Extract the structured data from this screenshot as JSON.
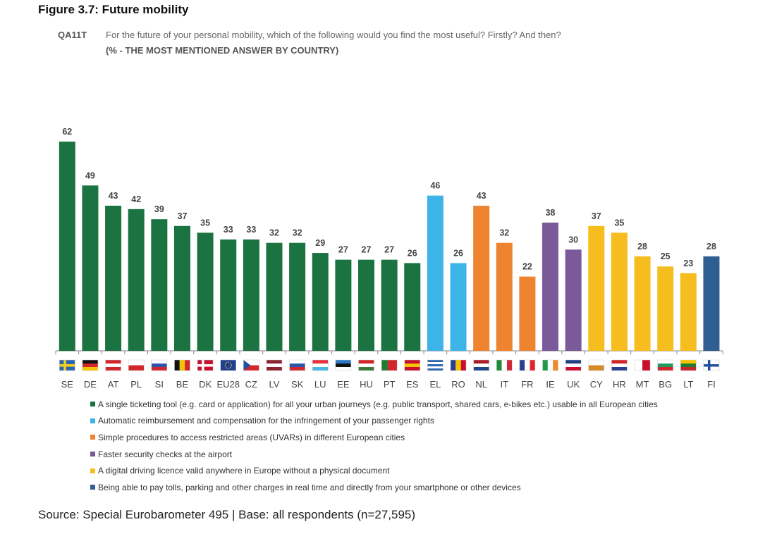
{
  "figure_title": "Figure 3.7: Future mobility",
  "question": {
    "code": "QA11T",
    "text": "For the future of your personal mobility, which of the following would you find the most useful? Firstly? And then?",
    "subtitle": "(% - THE MOST MENTIONED ANSWER BY COUNTRY)"
  },
  "source": "Source: Special Eurobarometer 495 | Base: all respondents (n=27,595)",
  "colors": {
    "green": "#1a7340",
    "blue": "#3db4e8",
    "orange": "#ee8430",
    "purple": "#7a5a99",
    "yellow": "#f6bd1e",
    "navy": "#2f5f90"
  },
  "chart_data": {
    "type": "bar",
    "title": "",
    "xlabel": "",
    "ylabel": "",
    "ylim": [
      0,
      62
    ],
    "categories": [
      "SE",
      "DE",
      "AT",
      "PL",
      "SI",
      "BE",
      "DK",
      "EU28",
      "CZ",
      "LV",
      "SK",
      "LU",
      "EE",
      "HU",
      "PT",
      "ES",
      "EL",
      "RO",
      "NL",
      "IT",
      "FR",
      "IE",
      "UK",
      "CY",
      "HR",
      "MT",
      "BG",
      "LT",
      "FI"
    ],
    "values": [
      62,
      49,
      43,
      42,
      39,
      37,
      35,
      33,
      33,
      32,
      32,
      29,
      27,
      27,
      27,
      26,
      46,
      26,
      43,
      32,
      22,
      38,
      30,
      37,
      35,
      28,
      25,
      23,
      28
    ],
    "answer_index": [
      0,
      0,
      0,
      0,
      0,
      0,
      0,
      0,
      0,
      0,
      0,
      0,
      0,
      0,
      0,
      0,
      1,
      1,
      2,
      2,
      2,
      3,
      3,
      4,
      4,
      4,
      4,
      4,
      5
    ],
    "legend": [
      {
        "name": "A single ticketing tool (e.g. card or application) for all your urban journeys (e.g. public transport, shared cars, e-bikes etc.) usable in all European cities",
        "color": "#1a7340"
      },
      {
        "name": "Automatic reimbursement and compensation for the infringement of your passenger rights",
        "color": "#3db4e8"
      },
      {
        "name": "Simple procedures to access restricted areas (UVARs) in different European cities",
        "color": "#ee8430"
      },
      {
        "name": "Faster security checks at the airport",
        "color": "#7a5a99"
      },
      {
        "name": "A digital driving licence valid anywhere in Europe without a physical document",
        "color": "#f6bd1e"
      },
      {
        "name": "Being able to pay tolls, parking and other charges in real time and directly from your smartphone or other devices",
        "color": "#2f5f90"
      }
    ],
    "legend_position": "bottom",
    "grid": false
  }
}
